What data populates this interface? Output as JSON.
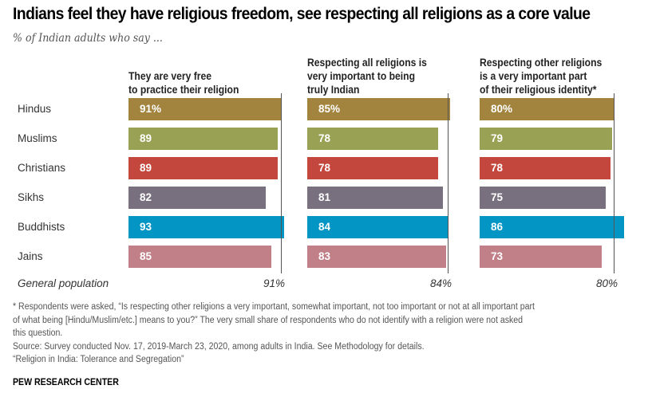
{
  "chart_data": {
    "type": "bar",
    "orientation": "horizontal",
    "title": "Indians feel they have religious freedom, see respecting all religions as a core value",
    "subtitle": "% of Indian adults who say ...",
    "categories": [
      "Hindus",
      "Muslims",
      "Christians",
      "Sikhs",
      "Buddhists",
      "Jains"
    ],
    "colors": [
      "#a2843e",
      "#98a154",
      "#c3473c",
      "#79707f",
      "#0395c3",
      "#c17f88"
    ],
    "series": [
      {
        "name": "They are very free\nto practice their religion",
        "values": [
          91,
          89,
          89,
          82,
          93,
          85
        ],
        "labels": [
          "91%",
          "89",
          "89",
          "82",
          "93",
          "85"
        ],
        "reference": {
          "label": "General population",
          "value": 91,
          "text": "91%"
        }
      },
      {
        "name": "Respecting all religions is\nvery important to being\ntruly Indian",
        "values": [
          85,
          78,
          78,
          81,
          84,
          83
        ],
        "labels": [
          "85%",
          "78",
          "78",
          "81",
          "84",
          "83"
        ],
        "reference": {
          "label": "General population",
          "value": 84,
          "text": "84%"
        }
      },
      {
        "name": "Respecting other religions\nis a very important part\nof their religious identity*",
        "values": [
          80,
          79,
          78,
          75,
          86,
          73
        ],
        "labels": [
          "80%",
          "79",
          "78",
          "75",
          "86",
          "73"
        ],
        "reference": {
          "label": "General population",
          "value": 80,
          "text": "80%"
        }
      }
    ],
    "xlim": [
      0,
      100
    ],
    "grid": false,
    "legend": "none"
  },
  "footer": {
    "notes": [
      "* Respondents were asked, “Is respecting other religions a very important, somewhat important, not too important or not at all important part",
      "of what being [Hindu/Muslim/etc.] means to you?” The very small share of respondents who do not identify with a religion were not asked",
      "this question.",
      "Source: Survey conducted Nov. 17, 2019-March 23, 2020, among adults in India. See Methodology for details.",
      "“Religion in India: Tolerance and Segregation”"
    ],
    "brand": "PEW RESEARCH CENTER"
  }
}
